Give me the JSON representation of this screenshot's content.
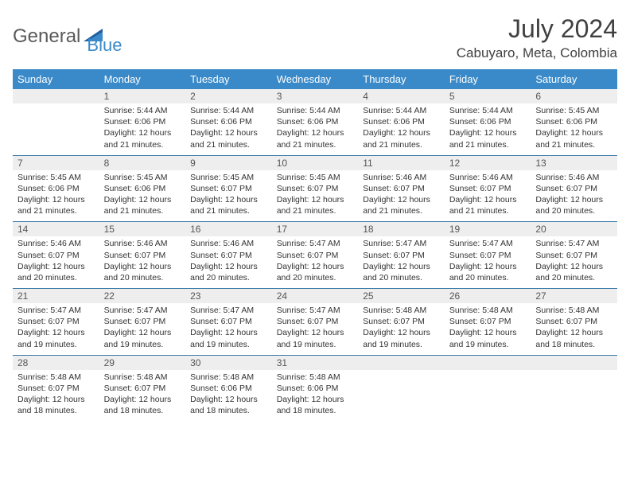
{
  "logo": {
    "part1": "General",
    "part2": "Blue"
  },
  "title": "July 2024",
  "location": "Cabuyaro, Meta, Colombia",
  "colors": {
    "header_bg": "#3a8ac9",
    "header_text": "#ffffff",
    "daynum_bg": "#eeeeee",
    "divider": "#3a7aa8",
    "body_text": "#333333",
    "logo_gray": "#5a5a5a",
    "logo_blue": "#3a8ac9"
  },
  "weekdays": [
    "Sunday",
    "Monday",
    "Tuesday",
    "Wednesday",
    "Thursday",
    "Friday",
    "Saturday"
  ],
  "weeks": [
    {
      "nums": [
        "",
        "1",
        "2",
        "3",
        "4",
        "5",
        "6"
      ],
      "cells": [
        "",
        "Sunrise: 5:44 AM\nSunset: 6:06 PM\nDaylight: 12 hours and 21 minutes.",
        "Sunrise: 5:44 AM\nSunset: 6:06 PM\nDaylight: 12 hours and 21 minutes.",
        "Sunrise: 5:44 AM\nSunset: 6:06 PM\nDaylight: 12 hours and 21 minutes.",
        "Sunrise: 5:44 AM\nSunset: 6:06 PM\nDaylight: 12 hours and 21 minutes.",
        "Sunrise: 5:44 AM\nSunset: 6:06 PM\nDaylight: 12 hours and 21 minutes.",
        "Sunrise: 5:45 AM\nSunset: 6:06 PM\nDaylight: 12 hours and 21 minutes."
      ]
    },
    {
      "nums": [
        "7",
        "8",
        "9",
        "10",
        "11",
        "12",
        "13"
      ],
      "cells": [
        "Sunrise: 5:45 AM\nSunset: 6:06 PM\nDaylight: 12 hours and 21 minutes.",
        "Sunrise: 5:45 AM\nSunset: 6:06 PM\nDaylight: 12 hours and 21 minutes.",
        "Sunrise: 5:45 AM\nSunset: 6:07 PM\nDaylight: 12 hours and 21 minutes.",
        "Sunrise: 5:45 AM\nSunset: 6:07 PM\nDaylight: 12 hours and 21 minutes.",
        "Sunrise: 5:46 AM\nSunset: 6:07 PM\nDaylight: 12 hours and 21 minutes.",
        "Sunrise: 5:46 AM\nSunset: 6:07 PM\nDaylight: 12 hours and 21 minutes.",
        "Sunrise: 5:46 AM\nSunset: 6:07 PM\nDaylight: 12 hours and 20 minutes."
      ]
    },
    {
      "nums": [
        "14",
        "15",
        "16",
        "17",
        "18",
        "19",
        "20"
      ],
      "cells": [
        "Sunrise: 5:46 AM\nSunset: 6:07 PM\nDaylight: 12 hours and 20 minutes.",
        "Sunrise: 5:46 AM\nSunset: 6:07 PM\nDaylight: 12 hours and 20 minutes.",
        "Sunrise: 5:46 AM\nSunset: 6:07 PM\nDaylight: 12 hours and 20 minutes.",
        "Sunrise: 5:47 AM\nSunset: 6:07 PM\nDaylight: 12 hours and 20 minutes.",
        "Sunrise: 5:47 AM\nSunset: 6:07 PM\nDaylight: 12 hours and 20 minutes.",
        "Sunrise: 5:47 AM\nSunset: 6:07 PM\nDaylight: 12 hours and 20 minutes.",
        "Sunrise: 5:47 AM\nSunset: 6:07 PM\nDaylight: 12 hours and 20 minutes."
      ]
    },
    {
      "nums": [
        "21",
        "22",
        "23",
        "24",
        "25",
        "26",
        "27"
      ],
      "cells": [
        "Sunrise: 5:47 AM\nSunset: 6:07 PM\nDaylight: 12 hours and 19 minutes.",
        "Sunrise: 5:47 AM\nSunset: 6:07 PM\nDaylight: 12 hours and 19 minutes.",
        "Sunrise: 5:47 AM\nSunset: 6:07 PM\nDaylight: 12 hours and 19 minutes.",
        "Sunrise: 5:47 AM\nSunset: 6:07 PM\nDaylight: 12 hours and 19 minutes.",
        "Sunrise: 5:48 AM\nSunset: 6:07 PM\nDaylight: 12 hours and 19 minutes.",
        "Sunrise: 5:48 AM\nSunset: 6:07 PM\nDaylight: 12 hours and 19 minutes.",
        "Sunrise: 5:48 AM\nSunset: 6:07 PM\nDaylight: 12 hours and 18 minutes."
      ]
    },
    {
      "nums": [
        "28",
        "29",
        "30",
        "31",
        "",
        "",
        ""
      ],
      "cells": [
        "Sunrise: 5:48 AM\nSunset: 6:07 PM\nDaylight: 12 hours and 18 minutes.",
        "Sunrise: 5:48 AM\nSunset: 6:07 PM\nDaylight: 12 hours and 18 minutes.",
        "Sunrise: 5:48 AM\nSunset: 6:06 PM\nDaylight: 12 hours and 18 minutes.",
        "Sunrise: 5:48 AM\nSunset: 6:06 PM\nDaylight: 12 hours and 18 minutes.",
        "",
        "",
        ""
      ]
    }
  ]
}
